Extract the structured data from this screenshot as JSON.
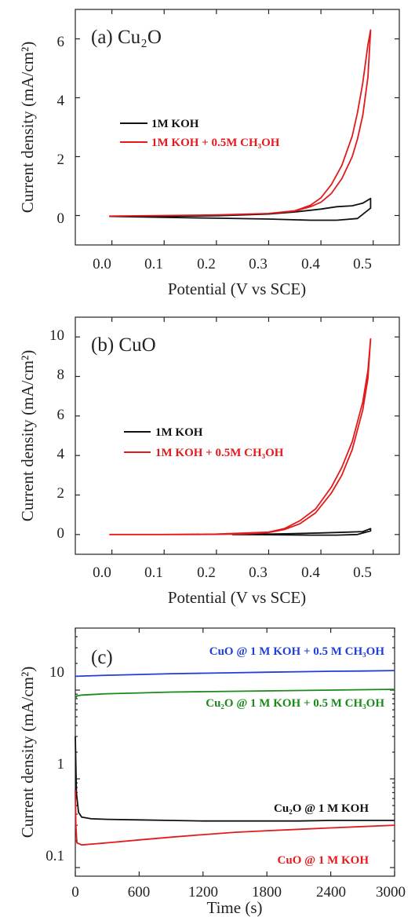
{
  "chart_data": [
    {
      "type": "line",
      "panel_label": "(a) Cu₂O",
      "xlabel": "Potential (V vs SCE)",
      "ylabel": "Current density (mA/cm²)",
      "xlim": [
        -0.07,
        0.55
      ],
      "ylim": [
        -1,
        7
      ],
      "xticks": [
        0.0,
        0.1,
        0.2,
        0.3,
        0.4,
        0.5
      ],
      "xtick_labels": [
        "0.0",
        "0.1",
        "0.2",
        "0.3",
        "0.4",
        "0.5"
      ],
      "yticks": [
        0,
        2,
        4,
        6
      ],
      "ytick_labels": [
        "0",
        "2",
        "4",
        "6"
      ],
      "legend_position": "center-left",
      "series": [
        {
          "name": "1M KOH",
          "color": "#111111",
          "x": [
            -0.005,
            0.1,
            0.2,
            0.3,
            0.35,
            0.4,
            0.43,
            0.46,
            0.48,
            0.495,
            0.495,
            0.47,
            0.43,
            0.38,
            0.3,
            0.2,
            0.1,
            -0.005
          ],
          "y": [
            -0.03,
            -0.02,
            -0.01,
            0.05,
            0.12,
            0.22,
            0.3,
            0.33,
            0.42,
            0.58,
            0.25,
            -0.1,
            -0.16,
            -0.16,
            -0.12,
            -0.09,
            -0.06,
            -0.03
          ]
        },
        {
          "name": "1M KOH + 0.5M CH₃OH",
          "color": "#e31a1c",
          "x": [
            -0.005,
            0.1,
            0.2,
            0.3,
            0.35,
            0.38,
            0.4,
            0.42,
            0.44,
            0.46,
            0.47,
            0.48,
            0.49,
            0.495,
            0.49,
            0.48,
            0.47,
            0.46,
            0.44,
            0.42,
            0.4,
            0.38,
            0.35,
            0.3,
            0.2,
            0.1,
            -0.005
          ],
          "y": [
            -0.02,
            0.0,
            0.02,
            0.07,
            0.15,
            0.3,
            0.45,
            0.75,
            1.25,
            2.0,
            2.6,
            3.4,
            4.7,
            6.3,
            5.8,
            4.5,
            3.5,
            2.7,
            1.7,
            1.05,
            0.6,
            0.35,
            0.16,
            0.07,
            0.02,
            0.0,
            -0.02
          ]
        }
      ]
    },
    {
      "type": "line",
      "panel_label": "(b) CuO",
      "xlabel": "Potential (V vs SCE)",
      "ylabel": "Current density (mA/cm²)",
      "xlim": [
        -0.07,
        0.55
      ],
      "ylim": [
        -1,
        11
      ],
      "xticks": [
        0.0,
        0.1,
        0.2,
        0.3,
        0.4,
        0.5
      ],
      "xtick_labels": [
        "0.0",
        "0.1",
        "0.2",
        "0.3",
        "0.4",
        "0.5"
      ],
      "yticks": [
        0,
        2,
        4,
        6,
        8,
        10
      ],
      "ytick_labels": [
        "0",
        "2",
        "4",
        "6",
        "8",
        "10"
      ],
      "legend_position": "center-left",
      "series": [
        {
          "name": "1M KOH",
          "color": "#111111",
          "x": [
            0.23,
            0.3,
            0.35,
            0.4,
            0.45,
            0.48,
            0.495,
            0.495,
            0.47,
            0.43,
            0.38,
            0.3,
            0.23
          ],
          "y": [
            0.0,
            0.02,
            0.05,
            0.08,
            0.12,
            0.15,
            0.3,
            0.18,
            0.0,
            -0.03,
            -0.03,
            -0.01,
            0.0
          ]
        },
        {
          "name": "1M KOH + 0.5M CH₃OH",
          "color": "#e31a1c",
          "x": [
            -0.005,
            0.1,
            0.2,
            0.25,
            0.3,
            0.33,
            0.36,
            0.39,
            0.42,
            0.44,
            0.46,
            0.48,
            0.49,
            0.495,
            0.49,
            0.48,
            0.46,
            0.44,
            0.42,
            0.39,
            0.36,
            0.33,
            0.3,
            0.2,
            0.1,
            -0.005
          ],
          "y": [
            0.0,
            0.0,
            0.01,
            0.03,
            0.1,
            0.25,
            0.55,
            1.1,
            2.1,
            3.0,
            4.3,
            6.3,
            7.9,
            9.9,
            8.3,
            6.7,
            4.7,
            3.4,
            2.4,
            1.3,
            0.7,
            0.3,
            0.12,
            0.02,
            0.0,
            0.0
          ]
        }
      ]
    },
    {
      "type": "line",
      "panel_label": "(c)",
      "xlabel": "Time (s)",
      "ylabel": "Current density (mA/cm²)",
      "xlim": [
        0,
        3000
      ],
      "ylim": [
        0.08,
        50
      ],
      "yscale": "log",
      "xticks": [
        0,
        600,
        1200,
        1800,
        2400,
        3000
      ],
      "xtick_labels": [
        "0",
        "600",
        "1200",
        "1800",
        "2400",
        "3000"
      ],
      "yticks": [
        0.1,
        1,
        10
      ],
      "ytick_labels": [
        "0.1",
        "1",
        "10"
      ],
      "series": [
        {
          "name": "CuO @ 1 M KOH + 0.5 M CH₃OH",
          "color": "#1f3fd8",
          "x": [
            0,
            300,
            600,
            900,
            1200,
            1500,
            1800,
            2100,
            2400,
            2700,
            3000
          ],
          "y": [
            14.3,
            14.7,
            15.0,
            15.3,
            15.5,
            15.7,
            15.9,
            16.1,
            16.3,
            16.4,
            16.6
          ]
        },
        {
          "name": "Cu₂O @ 1 M KOH + 0.5 M CH₃OH",
          "color": "#1a8a1a",
          "x": [
            0,
            15,
            60,
            300,
            600,
            900,
            1200,
            1500,
            1800,
            2100,
            2400,
            2700,
            3000
          ],
          "y": [
            8.0,
            8.6,
            8.8,
            9.1,
            9.3,
            9.5,
            9.6,
            9.7,
            9.8,
            9.9,
            10.0,
            10.1,
            10.2
          ]
        },
        {
          "name": "Cu₂O @ 1 M KOH",
          "color": "#111111",
          "x": [
            0,
            10,
            30,
            60,
            150,
            300,
            600,
            900,
            1200,
            1500,
            1800,
            2100,
            2400,
            2700,
            3000
          ],
          "y": [
            3.0,
            0.7,
            0.42,
            0.37,
            0.355,
            0.35,
            0.345,
            0.34,
            0.335,
            0.335,
            0.335,
            0.335,
            0.34,
            0.34,
            0.34
          ]
        },
        {
          "name": "CuO @ 1 M KOH",
          "color": "#e31a1c",
          "x": [
            0,
            5,
            15,
            60,
            300,
            600,
            900,
            1200,
            1500,
            1800,
            2100,
            2400,
            2700,
            3000
          ],
          "y": [
            0.75,
            0.3,
            0.19,
            0.18,
            0.19,
            0.205,
            0.22,
            0.235,
            0.25,
            0.26,
            0.27,
            0.28,
            0.29,
            0.3
          ]
        }
      ]
    }
  ]
}
